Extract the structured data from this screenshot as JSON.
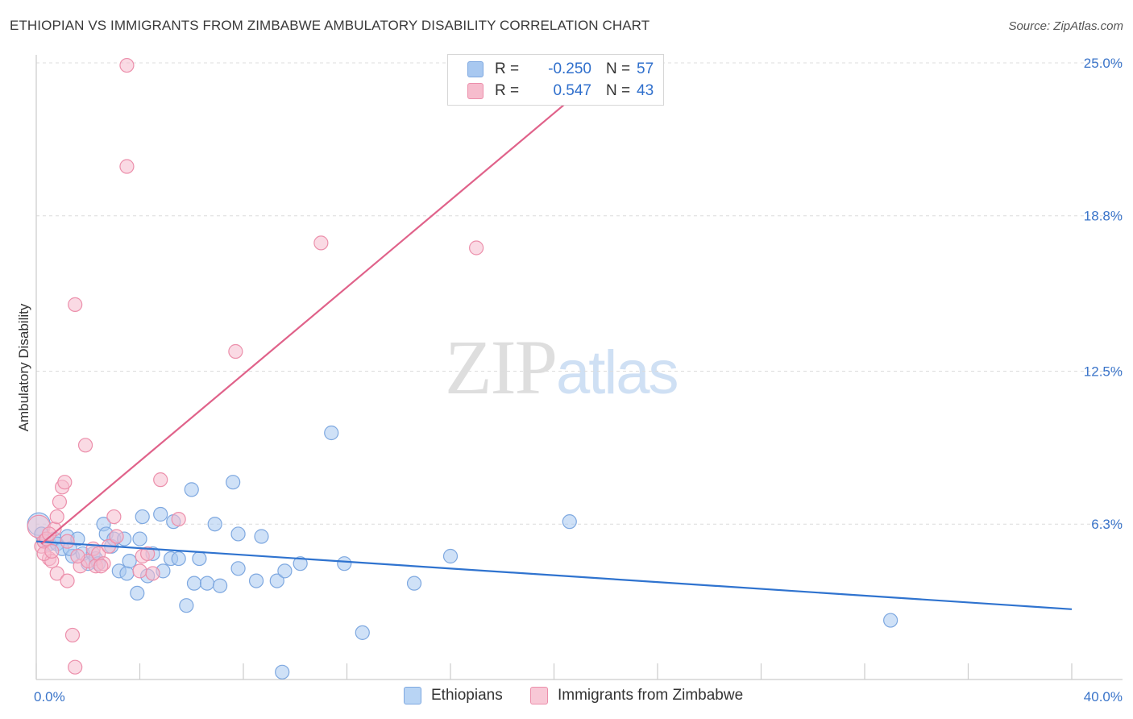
{
  "title": "ETHIOPIAN VS IMMIGRANTS FROM ZIMBABWE AMBULATORY DISABILITY CORRELATION CHART",
  "source": "Source: ZipAtlas.com",
  "watermark": {
    "zip": "ZIP",
    "atlas": "atlas"
  },
  "legend": {
    "r_label": "R =",
    "n_label": "N =",
    "rows": [
      {
        "r": "-0.250",
        "n": "57",
        "color": "#a8c8f0",
        "border": "#7ea8e0"
      },
      {
        "r": "0.547",
        "n": "43",
        "color": "#f6bccd",
        "border": "#ec8fab"
      }
    ]
  },
  "bottom_legend": [
    {
      "label": "Ethiopians",
      "color": "#b8d4f4",
      "border": "#7ea8e0"
    },
    {
      "label": "Immigrants from Zimbabwe",
      "color": "#f8c8d6",
      "border": "#ec8fab"
    }
  ],
  "chart_data": {
    "type": "scatter",
    "title": "ETHIOPIAN VS IMMIGRANTS FROM ZIMBABWE AMBULATORY DISABILITY CORRELATION CHART",
    "xlabel": "",
    "ylabel": "Ambulatory Disability",
    "xlim": [
      0,
      40
    ],
    "ylim": [
      0,
      25.0
    ],
    "x_tick_labels": [
      "0.0%",
      "40.0%"
    ],
    "y_ticks": [
      6.3,
      12.5,
      18.8,
      25.0
    ],
    "y_tick_labels": [
      "6.3%",
      "12.5%",
      "18.8%",
      "25.0%"
    ],
    "grid": "horizontal dashed",
    "series": [
      {
        "name": "Ethiopians",
        "color": "#7ea8e0",
        "fill": "#a8c8f0",
        "line_color": "#2f73cf",
        "trend": {
          "x": [
            0,
            40
          ],
          "y": [
            5.6,
            2.85
          ]
        },
        "points": [
          [
            0.1,
            6.3
          ],
          [
            0.2,
            5.9
          ],
          [
            0.3,
            5.6
          ],
          [
            0.5,
            5.5
          ],
          [
            0.7,
            5.7
          ],
          [
            0.8,
            5.5
          ],
          [
            1.0,
            5.3
          ],
          [
            1.2,
            5.8
          ],
          [
            1.4,
            5.0
          ],
          [
            1.6,
            5.7
          ],
          [
            1.8,
            5.1
          ],
          [
            2.0,
            4.7
          ],
          [
            2.2,
            5.1
          ],
          [
            2.3,
            4.9
          ],
          [
            2.4,
            4.7
          ],
          [
            2.6,
            6.3
          ],
          [
            2.7,
            5.9
          ],
          [
            2.9,
            5.4
          ],
          [
            3.0,
            5.7
          ],
          [
            3.2,
            4.4
          ],
          [
            3.4,
            5.7
          ],
          [
            3.5,
            4.3
          ],
          [
            3.6,
            4.8
          ],
          [
            3.9,
            3.5
          ],
          [
            4.0,
            5.7
          ],
          [
            4.1,
            6.6
          ],
          [
            4.3,
            4.2
          ],
          [
            4.5,
            5.1
          ],
          [
            4.8,
            6.7
          ],
          [
            4.9,
            4.4
          ],
          [
            5.2,
            4.9
          ],
          [
            5.3,
            6.4
          ],
          [
            5.5,
            4.9
          ],
          [
            5.8,
            3.0
          ],
          [
            6.0,
            7.7
          ],
          [
            6.1,
            3.9
          ],
          [
            6.3,
            4.9
          ],
          [
            6.6,
            3.9
          ],
          [
            6.9,
            6.3
          ],
          [
            7.1,
            3.8
          ],
          [
            7.6,
            8.0
          ],
          [
            7.8,
            4.5
          ],
          [
            7.8,
            5.9
          ],
          [
            8.5,
            4.0
          ],
          [
            8.7,
            5.8
          ],
          [
            9.3,
            4.0
          ],
          [
            9.5,
            0.3
          ],
          [
            9.6,
            4.4
          ],
          [
            10.2,
            4.7
          ],
          [
            11.4,
            10.0
          ],
          [
            11.9,
            4.7
          ],
          [
            12.6,
            1.9
          ],
          [
            14.6,
            3.9
          ],
          [
            16.0,
            5.0
          ],
          [
            20.6,
            6.4
          ],
          [
            33.0,
            2.4
          ],
          [
            1.3,
            5.3
          ]
        ]
      },
      {
        "name": "Immigrants from Zimbabwe",
        "color": "#ec8fab",
        "fill": "#f6bccd",
        "line_color": "#e0628a",
        "trend": {
          "x": [
            0.2,
            20.5
          ],
          "y": [
            5.5,
            23.4
          ]
        },
        "points": [
          [
            0.1,
            6.2
          ],
          [
            0.2,
            5.4
          ],
          [
            0.3,
            5.6
          ],
          [
            0.5,
            4.9
          ],
          [
            0.6,
            4.8
          ],
          [
            0.7,
            6.1
          ],
          [
            0.8,
            4.3
          ],
          [
            0.8,
            6.6
          ],
          [
            0.9,
            7.2
          ],
          [
            1.0,
            7.8
          ],
          [
            1.1,
            8.0
          ],
          [
            1.2,
            5.6
          ],
          [
            1.2,
            4.0
          ],
          [
            1.4,
            1.8
          ],
          [
            1.5,
            15.2
          ],
          [
            1.5,
            0.5
          ],
          [
            1.7,
            4.6
          ],
          [
            1.9,
            9.5
          ],
          [
            2.0,
            4.8
          ],
          [
            2.2,
            5.3
          ],
          [
            2.3,
            4.6
          ],
          [
            2.4,
            5.1
          ],
          [
            2.6,
            4.7
          ],
          [
            2.8,
            5.4
          ],
          [
            3.0,
            6.6
          ],
          [
            3.1,
            5.8
          ],
          [
            3.5,
            20.8
          ],
          [
            4.0,
            4.4
          ],
          [
            4.1,
            5.0
          ],
          [
            4.3,
            5.1
          ],
          [
            4.5,
            4.3
          ],
          [
            4.8,
            8.1
          ],
          [
            5.5,
            6.5
          ],
          [
            7.7,
            13.3
          ],
          [
            11.0,
            17.7
          ],
          [
            17.0,
            17.5
          ],
          [
            3.5,
            24.9
          ],
          [
            0.3,
            5.1
          ],
          [
            0.4,
            5.7
          ],
          [
            0.6,
            5.2
          ],
          [
            0.5,
            5.9
          ],
          [
            2.5,
            4.6
          ],
          [
            1.6,
            5.0
          ]
        ]
      }
    ]
  }
}
